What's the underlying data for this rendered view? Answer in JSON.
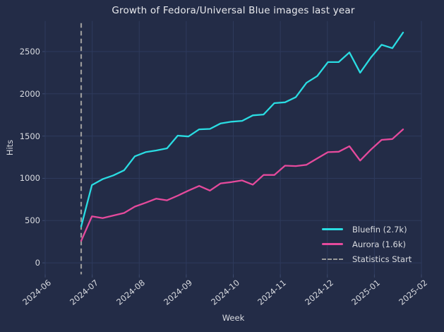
{
  "chart_data": {
    "type": "line",
    "title": "Growth of Fedora/Universal Blue images last year",
    "xlabel": "Week",
    "ylabel": "Hits",
    "x_tick_labels": [
      "2024-06",
      "2024-07",
      "2024-08",
      "2024-09",
      "2024-10",
      "2024-11",
      "2024-12",
      "2025-01",
      "2025-02"
    ],
    "y_ticks": [
      0,
      500,
      1000,
      1500,
      2000,
      2500
    ],
    "y_tick_labels": [
      "0",
      "500",
      "1000",
      "1500",
      "2000",
      "2500"
    ],
    "ylim": [
      -135,
      2860
    ],
    "grid": true,
    "legend_position": "lower right",
    "x_interval": "weekly",
    "n_points": 31,
    "series": [
      {
        "name": "Bluefin (2.7k)",
        "color": "#2adce2",
        "values": [
          430,
          920,
          990,
          1035,
          1095,
          1260,
          1310,
          1330,
          1355,
          1505,
          1495,
          1580,
          1585,
          1650,
          1670,
          1680,
          1745,
          1755,
          1890,
          1900,
          1960,
          2130,
          2210,
          2375,
          2375,
          2490,
          2250,
          2430,
          2580,
          2540,
          2725
        ]
      },
      {
        "name": "Aurora (1.6k)",
        "color": "#e54a9c",
        "values": [
          260,
          550,
          530,
          560,
          590,
          665,
          710,
          760,
          740,
          795,
          855,
          910,
          855,
          940,
          955,
          975,
          925,
          1040,
          1040,
          1150,
          1145,
          1160,
          1235,
          1310,
          1315,
          1380,
          1210,
          1340,
          1455,
          1465,
          1580
        ]
      }
    ],
    "annotations": [
      {
        "name": "Statistics Start",
        "type": "vertical-dashed-line",
        "color": "#9a9a9a",
        "x_position": "at first data point, late 2024-06"
      }
    ]
  },
  "colors": {
    "background": "#232c47",
    "grid": "#2e3a5c",
    "tick": "#3c4a6e",
    "text": "#d9dbe0",
    "title_text": "#e9eaee"
  }
}
